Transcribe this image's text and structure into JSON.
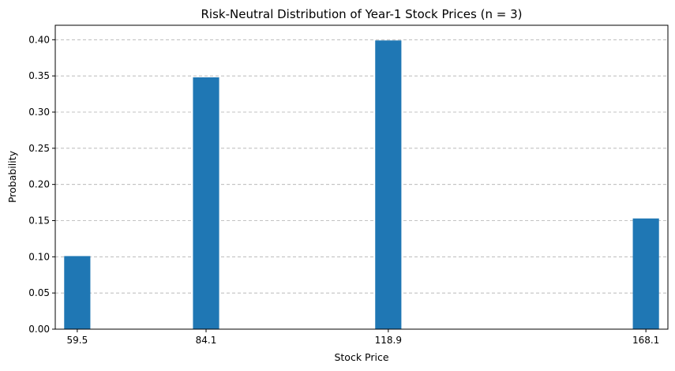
{
  "chart_data": {
    "type": "bar",
    "title": "Risk-Neutral Distribution of Year-1 Stock Prices (n = 3)",
    "xlabel": "Stock Price",
    "ylabel": "Probability",
    "x": [
      59.5,
      84.1,
      118.9,
      168.1
    ],
    "x_tick_labels": [
      "59.5",
      "84.1",
      "118.9",
      "168.1"
    ],
    "values": [
      0.101,
      0.348,
      0.399,
      0.153
    ],
    "bar_width": 5,
    "xlim": [
      55.3,
      172.3
    ],
    "ylim": [
      0,
      0.42
    ],
    "y_ticks": [
      0.0,
      0.05,
      0.1,
      0.15,
      0.2,
      0.25,
      0.3,
      0.35,
      0.4
    ],
    "y_tick_labels": [
      "0.00",
      "0.05",
      "0.10",
      "0.15",
      "0.20",
      "0.25",
      "0.30",
      "0.35",
      "0.40"
    ],
    "grid": "y-dashed",
    "colors": {
      "bar": "#1f77b4",
      "grid": "#b0b0b0"
    }
  }
}
